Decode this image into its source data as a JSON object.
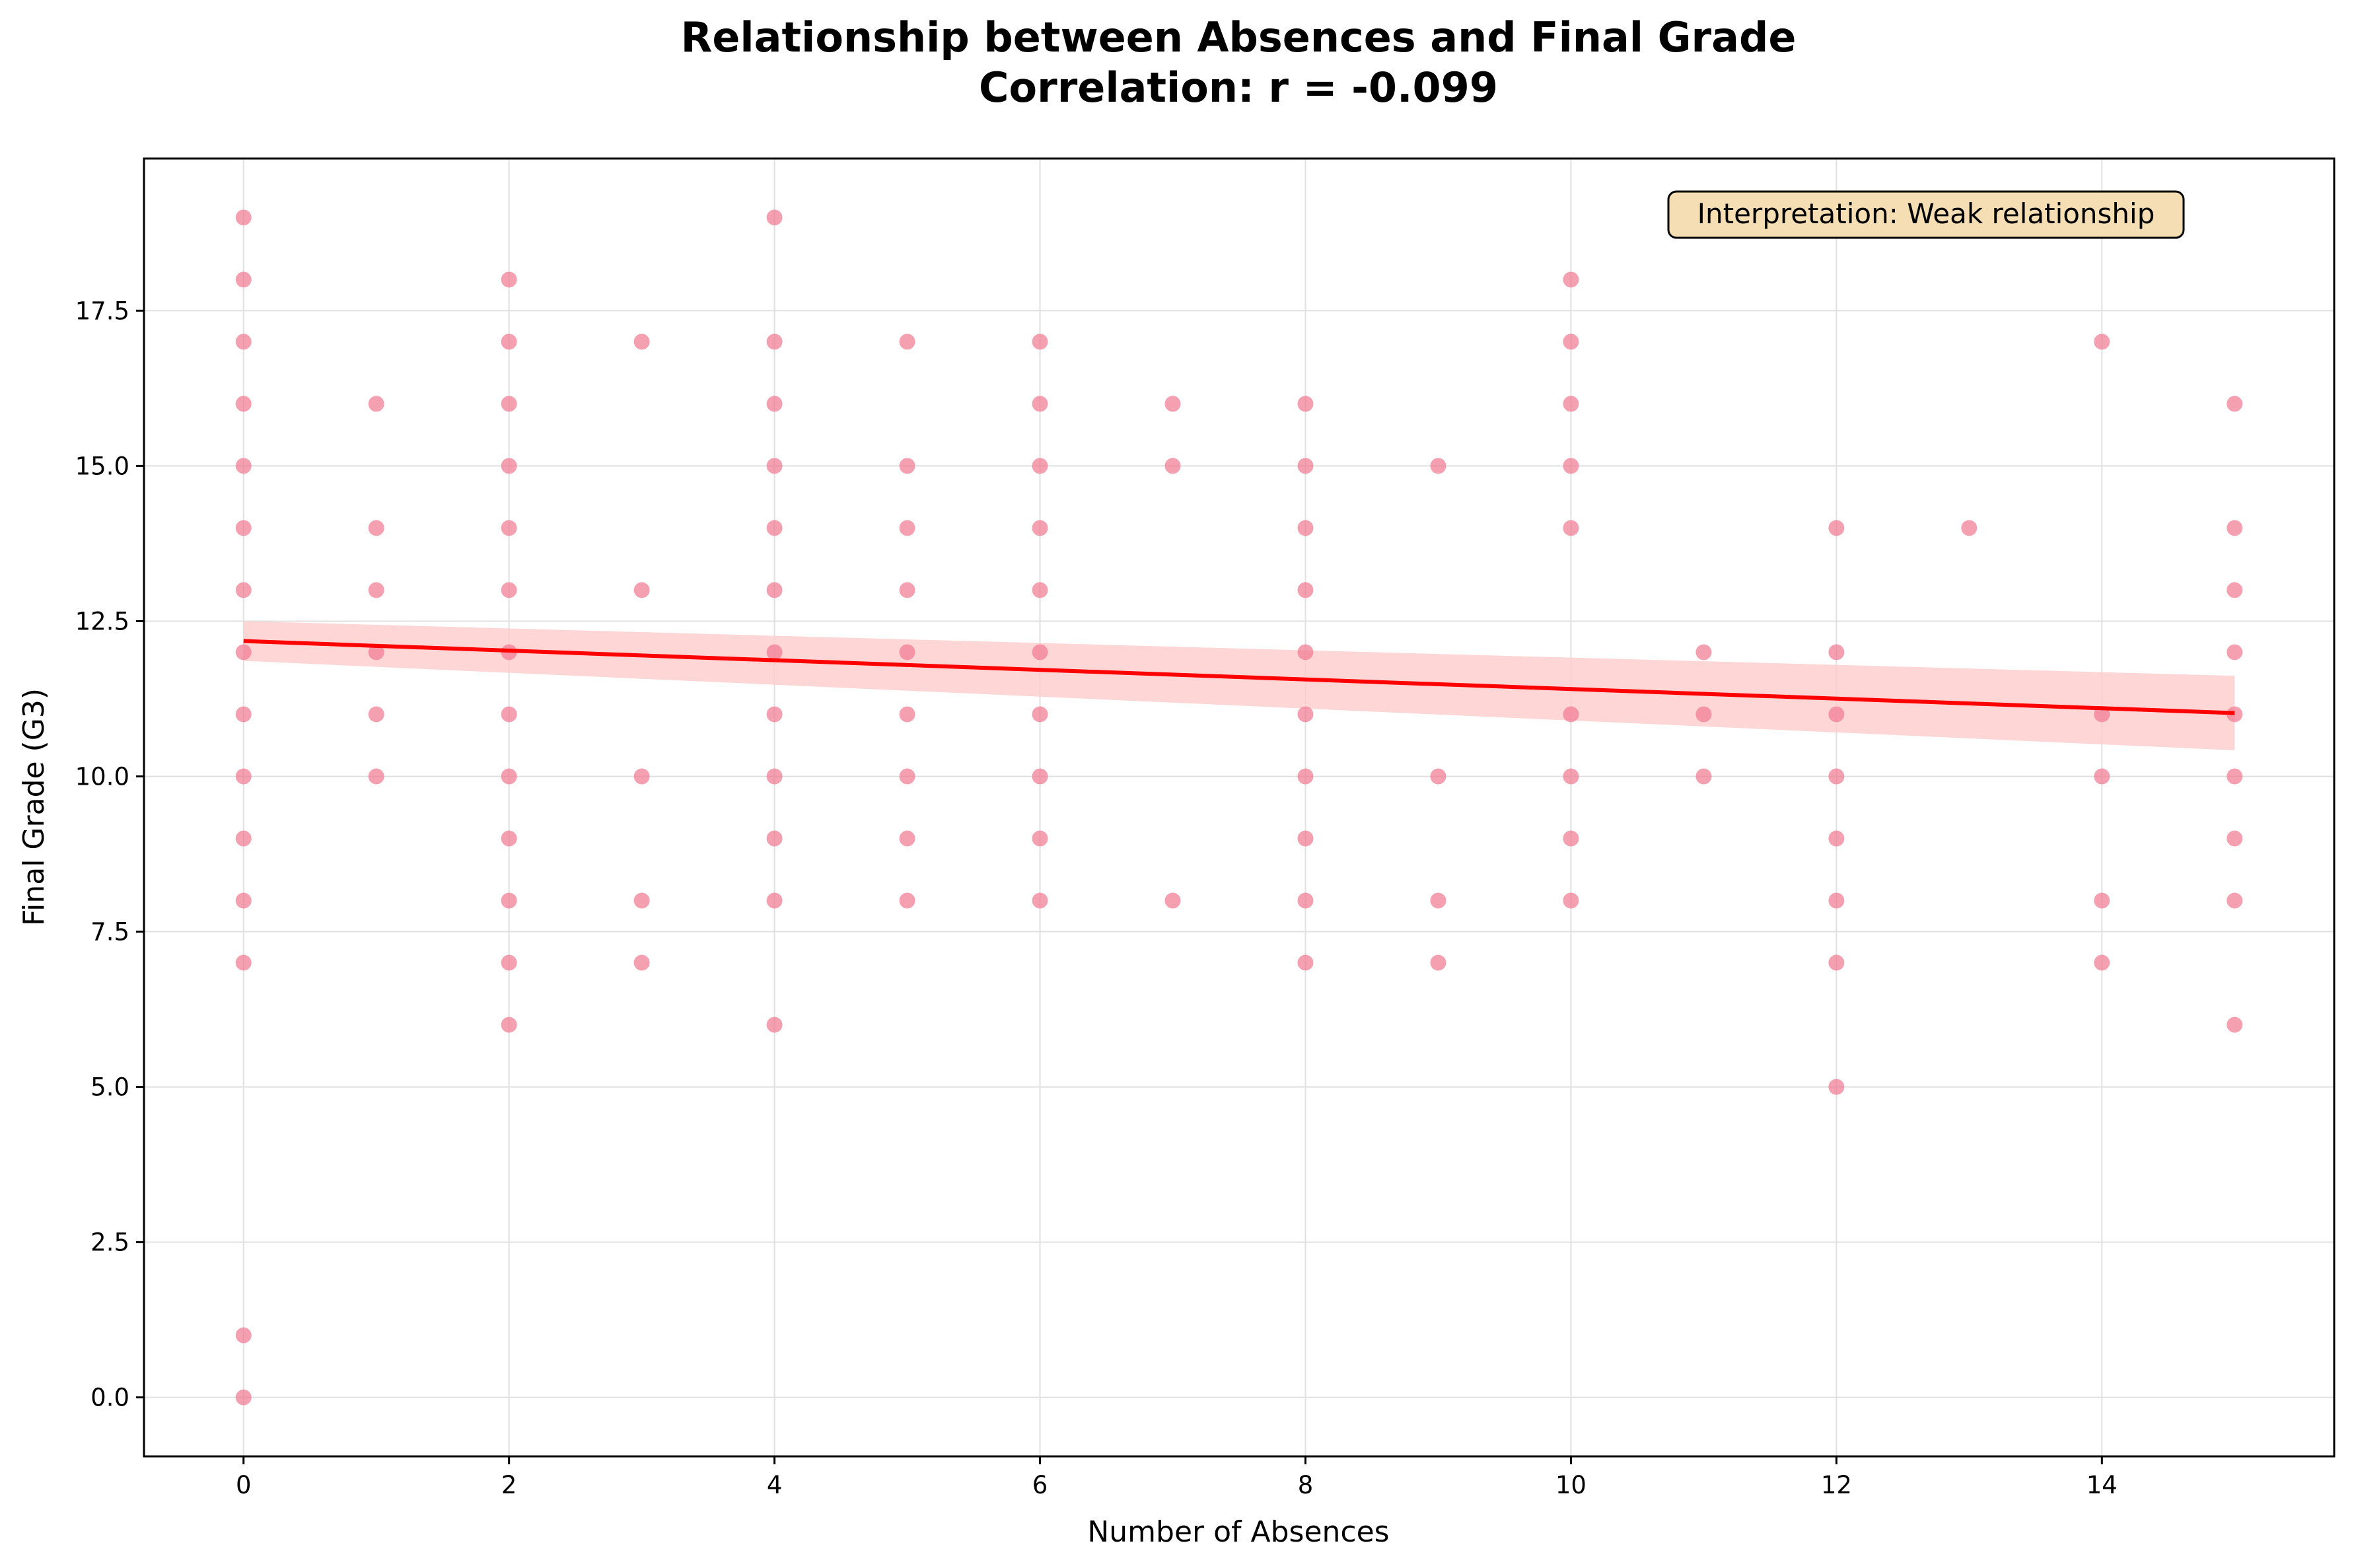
{
  "chart_data": {
    "type": "scatter",
    "title": "Relationship between Absences and Final Grade",
    "subtitle": "Correlation: r = -0.099",
    "xlabel": "Number of Absences",
    "ylabel": "Final Grade (G3)",
    "xlim": [
      -0.75,
      15.75
    ],
    "ylim": [
      -0.95,
      19.95
    ],
    "xticks": [
      0,
      2,
      4,
      6,
      8,
      10,
      12,
      14
    ],
    "yticks": [
      0.0,
      2.5,
      5.0,
      7.5,
      10.0,
      12.5,
      15.0,
      17.5
    ],
    "xtick_labels": [
      "0",
      "2",
      "4",
      "6",
      "8",
      "10",
      "12",
      "14"
    ],
    "ytick_labels": [
      "0.0",
      "2.5",
      "5.0",
      "7.5",
      "10.0",
      "12.5",
      "15.0",
      "17.5"
    ],
    "grid": true,
    "points_color": "#f07890",
    "points": [
      [
        0,
        19
      ],
      [
        0,
        18
      ],
      [
        0,
        17
      ],
      [
        0,
        16
      ],
      [
        0,
        15
      ],
      [
        0,
        14
      ],
      [
        0,
        13
      ],
      [
        0,
        12
      ],
      [
        0,
        11
      ],
      [
        0,
        10
      ],
      [
        0,
        9
      ],
      [
        0,
        8
      ],
      [
        0,
        7
      ],
      [
        0,
        1
      ],
      [
        0,
        0
      ],
      [
        1,
        16
      ],
      [
        1,
        14
      ],
      [
        1,
        13
      ],
      [
        1,
        12
      ],
      [
        1,
        11
      ],
      [
        1,
        10
      ],
      [
        2,
        18
      ],
      [
        2,
        17
      ],
      [
        2,
        16
      ],
      [
        2,
        15
      ],
      [
        2,
        14
      ],
      [
        2,
        13
      ],
      [
        2,
        12
      ],
      [
        2,
        11
      ],
      [
        2,
        10
      ],
      [
        2,
        9
      ],
      [
        2,
        8
      ],
      [
        2,
        7
      ],
      [
        2,
        6
      ],
      [
        3,
        17
      ],
      [
        3,
        13
      ],
      [
        3,
        10
      ],
      [
        3,
        8
      ],
      [
        3,
        7
      ],
      [
        4,
        19
      ],
      [
        4,
        17
      ],
      [
        4,
        16
      ],
      [
        4,
        15
      ],
      [
        4,
        14
      ],
      [
        4,
        13
      ],
      [
        4,
        12
      ],
      [
        4,
        11
      ],
      [
        4,
        10
      ],
      [
        4,
        9
      ],
      [
        4,
        8
      ],
      [
        4,
        6
      ],
      [
        5,
        17
      ],
      [
        5,
        15
      ],
      [
        5,
        14
      ],
      [
        5,
        13
      ],
      [
        5,
        12
      ],
      [
        5,
        11
      ],
      [
        5,
        10
      ],
      [
        5,
        9
      ],
      [
        5,
        8
      ],
      [
        6,
        17
      ],
      [
        6,
        16
      ],
      [
        6,
        15
      ],
      [
        6,
        14
      ],
      [
        6,
        13
      ],
      [
        6,
        12
      ],
      [
        6,
        11
      ],
      [
        6,
        10
      ],
      [
        6,
        9
      ],
      [
        6,
        8
      ],
      [
        7,
        16
      ],
      [
        7,
        15
      ],
      [
        7,
        8
      ],
      [
        8,
        16
      ],
      [
        8,
        15
      ],
      [
        8,
        14
      ],
      [
        8,
        13
      ],
      [
        8,
        12
      ],
      [
        8,
        11
      ],
      [
        8,
        10
      ],
      [
        8,
        9
      ],
      [
        8,
        8
      ],
      [
        8,
        7
      ],
      [
        9,
        15
      ],
      [
        9,
        10
      ],
      [
        9,
        8
      ],
      [
        9,
        7
      ],
      [
        10,
        18
      ],
      [
        10,
        17
      ],
      [
        10,
        16
      ],
      [
        10,
        15
      ],
      [
        10,
        14
      ],
      [
        10,
        11
      ],
      [
        10,
        10
      ],
      [
        10,
        9
      ],
      [
        10,
        8
      ],
      [
        11,
        12
      ],
      [
        11,
        11
      ],
      [
        11,
        10
      ],
      [
        12,
        14
      ],
      [
        12,
        12
      ],
      [
        12,
        11
      ],
      [
        12,
        10
      ],
      [
        12,
        9
      ],
      [
        12,
        8
      ],
      [
        12,
        7
      ],
      [
        12,
        5
      ],
      [
        13,
        14
      ],
      [
        14,
        17
      ],
      [
        14,
        11
      ],
      [
        14,
        10
      ],
      [
        14,
        8
      ],
      [
        14,
        7
      ],
      [
        15,
        16
      ],
      [
        15,
        14
      ],
      [
        15,
        13
      ],
      [
        15,
        12
      ],
      [
        15,
        11
      ],
      [
        15,
        10
      ],
      [
        15,
        9
      ],
      [
        15,
        8
      ],
      [
        15,
        6
      ]
    ],
    "regression": {
      "color": "#ff0000",
      "x": [
        0,
        15
      ],
      "y": [
        12.18,
        11.02
      ],
      "ci_lower": [
        11.86,
        10.42
      ],
      "ci_upper": [
        12.5,
        11.62
      ],
      "ci_color": "#ffcccc"
    },
    "annotation": {
      "text": "Interpretation: Weak relationship",
      "background": "#f5deb3"
    }
  }
}
